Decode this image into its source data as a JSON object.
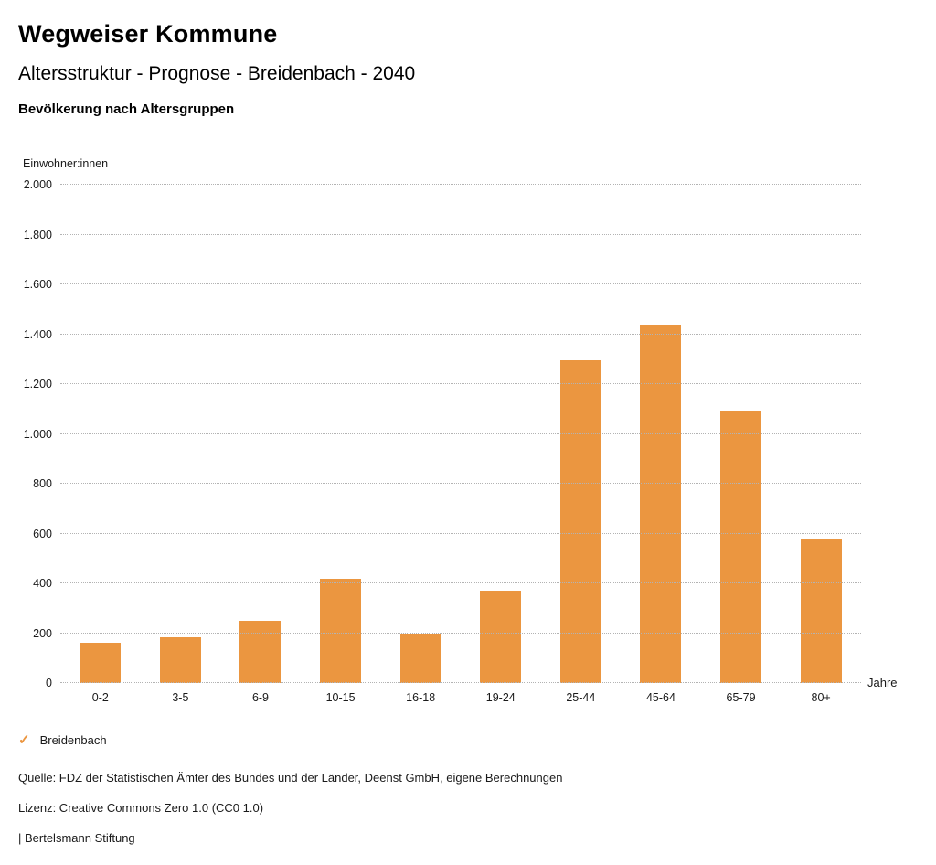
{
  "header": {
    "title": "Wegweiser Kommune",
    "subtitle": "Altersstruktur - Prognose - Breidenbach - 2040",
    "chart_title": "Bevölkerung nach Altersgruppen"
  },
  "chart_data": {
    "type": "bar",
    "title": "Bevölkerung nach Altersgruppen",
    "ylabel": "Einwohner:innen",
    "xlabel": "Jahre",
    "categories": [
      "0-2",
      "3-5",
      "6-9",
      "10-15",
      "16-18",
      "19-24",
      "25-44",
      "45-64",
      "65-79",
      "80+"
    ],
    "values": [
      160,
      185,
      250,
      420,
      200,
      370,
      1295,
      1440,
      1090,
      580
    ],
    "series_name": "Breidenbach",
    "ylim": [
      0,
      2000
    ],
    "ytick_values": [
      0,
      200,
      400,
      600,
      800,
      1000,
      1200,
      1400,
      1600,
      1800,
      2000
    ],
    "ytick_labels": [
      "0",
      "200",
      "400",
      "600",
      "800",
      "1.000",
      "1.200",
      "1.400",
      "1.600",
      "1.800",
      "2.000"
    ],
    "grid": "horizontal-dotted",
    "legend_position": "bottom-left"
  },
  "legend": {
    "check_icon": "✓",
    "label": "Breidenbach"
  },
  "footer": {
    "source": "Quelle: FDZ der Statistischen Ämter des Bundes und der Länder, Deenst GmbH, eigene Berechnungen",
    "license": "Lizenz: Creative Commons Zero 1.0 (CC0 1.0)",
    "attribution": "| Bertelsmann Stiftung"
  },
  "colors": {
    "bar": "#EB9640",
    "gridline": "#b3b3b3",
    "text": "#1a1a1a"
  }
}
